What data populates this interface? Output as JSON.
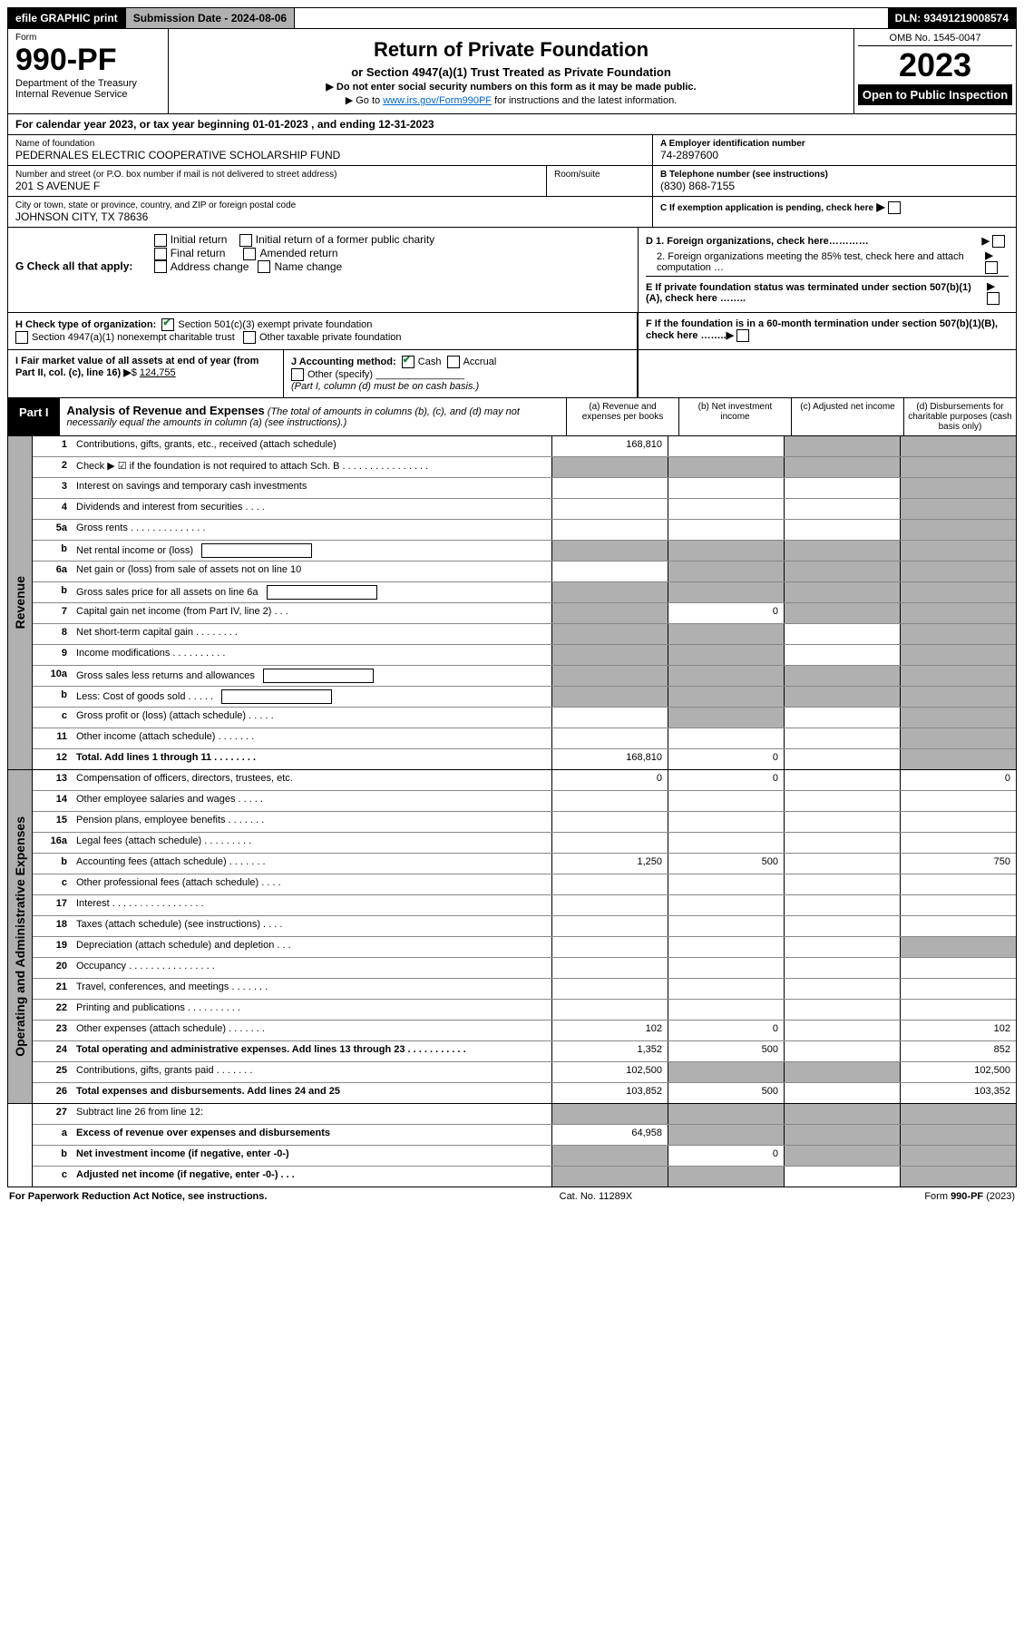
{
  "colors": {
    "black": "#000000",
    "grey": "#b0b0b0",
    "link": "#0066cc",
    "check": "#1a7f37",
    "white": "#ffffff"
  },
  "topbar": {
    "efile": "efile GRAPHIC print",
    "submission_label": "Submission Date - 2024-08-06",
    "dln": "DLN: 93491219008574"
  },
  "form": {
    "prefix": "Form",
    "number": "990-PF",
    "dept1": "Department of the Treasury",
    "dept2": "Internal Revenue Service"
  },
  "title": {
    "main": "Return of Private Foundation",
    "sub": "or Section 4947(a)(1) Trust Treated as Private Foundation",
    "instr1": "▶ Do not enter social security numbers on this form as it may be made public.",
    "instr2_pre": "▶ Go to ",
    "instr2_link": "www.irs.gov/Form990PF",
    "instr2_post": " for instructions and the latest information."
  },
  "right": {
    "omb": "OMB No. 1545-0047",
    "year": "2023",
    "open": "Open to Public Inspection"
  },
  "calendar": {
    "prefix": "For calendar year 2023, or tax year beginning ",
    "begin": "01-01-2023",
    "mid": " , and ending ",
    "end": "12-31-2023"
  },
  "entity": {
    "name_label": "Name of foundation",
    "name": "PEDERNALES ELECTRIC COOPERATIVE SCHOLARSHIP FUND",
    "addr_label": "Number and street (or P.O. box number if mail is not delivered to street address)",
    "room_label": "Room/suite",
    "addr": "201 S AVENUE F",
    "city_label": "City or town, state or province, country, and ZIP or foreign postal code",
    "city": "JOHNSON CITY, TX  78636",
    "a_label": "A Employer identification number",
    "a": "74-2897600",
    "b_label": "B Telephone number (see instructions)",
    "b": "(830) 868-7155",
    "c_label": "C If exemption application is pending, check here"
  },
  "g": {
    "label": "G Check all that apply:",
    "o1": "Initial return",
    "o2": "Final return",
    "o3": "Address change",
    "o4": "Initial return of a former public charity",
    "o5": "Amended return",
    "o6": "Name change"
  },
  "d": {
    "d1": "D 1. Foreign organizations, check here…………",
    "d2": "2. Foreign organizations meeting the 85% test, check here and attach computation …",
    "e": "E If private foundation status was terminated under section 507(b)(1)(A), check here ……..",
    "f": "F If the foundation is in a 60-month termination under section 507(b)(1)(B), check here …….."
  },
  "h": {
    "label": "H Check type of organization:",
    "o1": "Section 501(c)(3) exempt private foundation",
    "o2": "Section 4947(a)(1) nonexempt charitable trust",
    "o3": "Other taxable private foundation"
  },
  "i": {
    "label": "I Fair market value of all assets at end of year (from Part II, col. (c), line 16)",
    "value": "124,755"
  },
  "j": {
    "label": "J Accounting method:",
    "cash": "Cash",
    "accrual": "Accrual",
    "other": "Other (specify)",
    "note": "(Part I, column (d) must be on cash basis.)"
  },
  "part1": {
    "label": "Part I",
    "title": "Analysis of Revenue and Expenses",
    "note": "(The total of amounts in columns (b), (c), and (d) may not necessarily equal the amounts in column (a) (see instructions).)",
    "colA": "(a)   Revenue and expenses per books",
    "colB": "(b)   Net investment income",
    "colC": "(c)   Adjusted net income",
    "colD": "(d)   Disbursements for charitable purposes (cash basis only)"
  },
  "sections": {
    "revenue": "Revenue",
    "opex": "Operating and Administrative Expenses"
  },
  "rows": [
    {
      "n": "1",
      "l": "Contributions, gifts, grants, etc., received (attach schedule)",
      "a": "168,810",
      "cgrey": true,
      "dgrey": true
    },
    {
      "n": "2",
      "l": "Check ▶ ☑ if the foundation is not required to attach Sch. B  .  .  .  .  .  .  .  .  .  .  .  .  .  .  .  .",
      "allgrey": true,
      "checkmark": true
    },
    {
      "n": "3",
      "l": "Interest on savings and temporary cash investments",
      "dgrey": true
    },
    {
      "n": "4",
      "l": "Dividends and interest from securities  .  .  .  .",
      "dgrey": true
    },
    {
      "n": "5a",
      "l": "Gross rents  .  .  .  .  .  .  .  .  .  .  .  .  .  .",
      "dgrey": true
    },
    {
      "n": "b",
      "l": "Net rental income or (loss)",
      "extrabox": true,
      "allgrey": true
    },
    {
      "n": "6a",
      "l": "Net gain or (loss) from sale of assets not on line 10",
      "bgrey": true,
      "cgrey": true,
      "dgrey": true
    },
    {
      "n": "b",
      "l": "Gross sales price for all assets on line 6a",
      "extrabox": true,
      "allgrey": true
    },
    {
      "n": "7",
      "l": "Capital gain net income (from Part IV, line 2)  .  .  .",
      "agrey": true,
      "b": "0",
      "cgrey": true,
      "dgrey": true
    },
    {
      "n": "8",
      "l": "Net short-term capital gain  .  .  .  .  .  .  .  .",
      "agrey": true,
      "bgrey": true,
      "dgrey": true
    },
    {
      "n": "9",
      "l": "Income modifications  .  .  .  .  .  .  .  .  .  .",
      "agrey": true,
      "bgrey": true,
      "dgrey": true
    },
    {
      "n": "10a",
      "l": "Gross sales less returns and allowances",
      "extrabox": true,
      "allgrey": true
    },
    {
      "n": "b",
      "l": "Less: Cost of goods sold  .  .  .  .  .",
      "extrabox": true,
      "allgrey": true
    },
    {
      "n": "c",
      "l": "Gross profit or (loss) (attach schedule)  .  .  .  .  .",
      "bgrey": true,
      "dgrey": true
    },
    {
      "n": "11",
      "l": "Other income (attach schedule)  .  .  .  .  .  .  .",
      "dgrey": true
    },
    {
      "n": "12",
      "l": "Total. Add lines 1 through 11  .  .  .  .  .  .  .  .",
      "bold": true,
      "a": "168,810",
      "b": "0",
      "dgrey": true
    }
  ],
  "rows2": [
    {
      "n": "13",
      "l": "Compensation of officers, directors, trustees, etc.",
      "a": "0",
      "b": "0",
      "d": "0"
    },
    {
      "n": "14",
      "l": "Other employee salaries and wages  .  .  .  .  ."
    },
    {
      "n": "15",
      "l": "Pension plans, employee benefits  .  .  .  .  .  .  ."
    },
    {
      "n": "16a",
      "l": "Legal fees (attach schedule)  .  .  .  .  .  .  .  .  ."
    },
    {
      "n": "b",
      "l": "Accounting fees (attach schedule)  .  .  .  .  .  .  .",
      "a": "1,250",
      "b": "500",
      "d": "750"
    },
    {
      "n": "c",
      "l": "Other professional fees (attach schedule)  .  .  .  ."
    },
    {
      "n": "17",
      "l": "Interest  .  .  .  .  .  .  .  .  .  .  .  .  .  .  .  .  ."
    },
    {
      "n": "18",
      "l": "Taxes (attach schedule) (see instructions)  .  .  .  ."
    },
    {
      "n": "19",
      "l": "Depreciation (attach schedule) and depletion  .  .  .",
      "dgrey": true
    },
    {
      "n": "20",
      "l": "Occupancy  .  .  .  .  .  .  .  .  .  .  .  .  .  .  .  ."
    },
    {
      "n": "21",
      "l": "Travel, conferences, and meetings  .  .  .  .  .  .  ."
    },
    {
      "n": "22",
      "l": "Printing and publications  .  .  .  .  .  .  .  .  .  ."
    },
    {
      "n": "23",
      "l": "Other expenses (attach schedule)  .  .  .  .  .  .  .",
      "a": "102",
      "b": "0",
      "d": "102"
    },
    {
      "n": "24",
      "l": "Total operating and administrative expenses. Add lines 13 through 23  .  .  .  .  .  .  .  .  .  .  .",
      "bold": true,
      "a": "1,352",
      "b": "500",
      "d": "852"
    },
    {
      "n": "25",
      "l": "Contributions, gifts, grants paid  .  .  .  .  .  .  .",
      "a": "102,500",
      "bgrey": true,
      "cgrey": true,
      "d": "102,500"
    },
    {
      "n": "26",
      "l": "Total expenses and disbursements. Add lines 24 and 25",
      "bold": true,
      "a": "103,852",
      "b": "500",
      "d": "103,352"
    }
  ],
  "rows3": [
    {
      "n": "27",
      "l": "Subtract line 26 from line 12:",
      "allgrey": true
    },
    {
      "n": "a",
      "l": "Excess of revenue over expenses and disbursements",
      "bold": true,
      "a": "64,958",
      "bgrey": true,
      "cgrey": true,
      "dgrey": true
    },
    {
      "n": "b",
      "l": "Net investment income (if negative, enter -0-)",
      "bold": true,
      "agrey": true,
      "b": "0",
      "cgrey": true,
      "dgrey": true
    },
    {
      "n": "c",
      "l": "Adjusted net income (if negative, enter -0-)  .  .  .",
      "bold": true,
      "agrey": true,
      "bgrey": true,
      "dgrey": true
    }
  ],
  "footer": {
    "left": "For Paperwork Reduction Act Notice, see instructions.",
    "mid": "Cat. No. 11289X",
    "right": "Form 990-PF (2023)"
  }
}
